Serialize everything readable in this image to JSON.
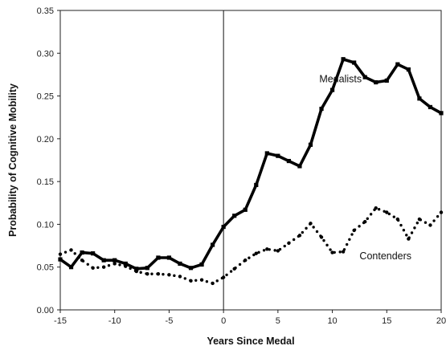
{
  "chart_data": {
    "type": "line",
    "title": "",
    "xlabel": "Years Since Medal",
    "ylabel": "Probability of Cognitive Mobility",
    "xlim": [
      -15,
      20
    ],
    "ylim": [
      0,
      0.35
    ],
    "xticks": [
      -15,
      -10,
      -5,
      0,
      5,
      10,
      15,
      20
    ],
    "xtick_labels": [
      "-15",
      "-10",
      "-5",
      "0",
      "5",
      "10",
      "15",
      "20"
    ],
    "yticks": [
      0,
      0.05,
      0.1,
      0.15,
      0.2,
      0.25,
      0.3,
      0.35
    ],
    "ytick_labels": [
      "0.00",
      "0.05",
      "0.10",
      "0.15",
      "0.20",
      "0.25",
      "0.30",
      "0.35"
    ],
    "grid": false,
    "reference_line_x": 0,
    "series": [
      {
        "name": "Medalists",
        "style": "solid",
        "color": "#000000",
        "x": [
          -15,
          -14,
          -13,
          -12,
          -11,
          -10,
          -9,
          -8,
          -7,
          -6,
          -5,
          -4,
          -3,
          -2,
          -1,
          0,
          1,
          2,
          3,
          4,
          5,
          6,
          7,
          8,
          9,
          10,
          11,
          12,
          13,
          14,
          15,
          16,
          17,
          18,
          19,
          20
        ],
        "values": [
          0.059,
          0.05,
          0.067,
          0.066,
          0.058,
          0.058,
          0.054,
          0.048,
          0.049,
          0.061,
          0.061,
          0.054,
          0.049,
          0.053,
          0.076,
          0.097,
          0.11,
          0.117,
          0.146,
          0.183,
          0.18,
          0.174,
          0.168,
          0.193,
          0.235,
          0.257,
          0.293,
          0.289,
          0.272,
          0.266,
          0.268,
          0.287,
          0.281,
          0.247,
          0.237,
          0.23
        ]
      },
      {
        "name": "Contenders",
        "style": "dotted",
        "color": "#000000",
        "x": [
          -15,
          -14,
          -13,
          -12,
          -11,
          -10,
          -9,
          -8,
          -7,
          -6,
          -5,
          -4,
          -3,
          -2,
          -1,
          0,
          1,
          2,
          3,
          4,
          5,
          6,
          7,
          8,
          9,
          10,
          11,
          12,
          13,
          14,
          15,
          16,
          17,
          18,
          19,
          20
        ],
        "values": [
          0.065,
          0.07,
          0.058,
          0.049,
          0.05,
          0.054,
          0.051,
          0.045,
          0.042,
          0.042,
          0.041,
          0.039,
          0.034,
          0.035,
          0.031,
          0.038,
          0.048,
          0.058,
          0.066,
          0.071,
          0.069,
          0.078,
          0.087,
          0.101,
          0.085,
          0.067,
          0.068,
          0.093,
          0.103,
          0.119,
          0.114,
          0.106,
          0.083,
          0.106,
          0.099,
          0.114
        ]
      }
    ],
    "annotations": [
      {
        "text": "Medalists",
        "x": 8.8,
        "y": 0.27
      },
      {
        "text": "Contenders",
        "x": 12.5,
        "y": 0.063
      }
    ]
  }
}
